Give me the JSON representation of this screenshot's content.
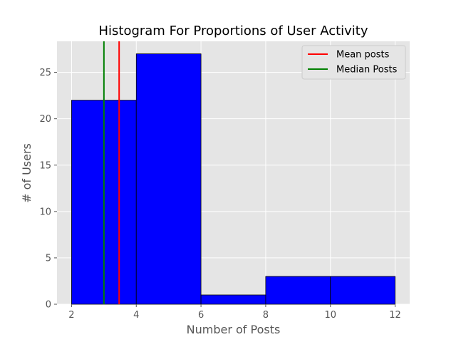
{
  "chart_data": {
    "type": "bar",
    "title": "Histogram For Proportions of User Activity",
    "xlabel": "Number of Posts",
    "ylabel": "# of Users",
    "bins": [
      {
        "start": 2,
        "end": 4,
        "count": 22
      },
      {
        "start": 4,
        "end": 6,
        "count": 27
      },
      {
        "start": 6,
        "end": 8,
        "count": 1
      },
      {
        "start": 8,
        "end": 10,
        "count": 3
      },
      {
        "start": 10,
        "end": 12,
        "count": 3
      }
    ],
    "xlim": [
      1.55,
      12.45
    ],
    "ylim": [
      0,
      28.35
    ],
    "xticks": [
      2,
      4,
      6,
      8,
      10,
      12
    ],
    "yticks": [
      0,
      5,
      10,
      15,
      20,
      25
    ],
    "vlines": [
      {
        "name": "Mean posts",
        "x": 3.47,
        "color": "#ff0000"
      },
      {
        "name": "Median Posts",
        "x": 3.0,
        "color": "#008000"
      }
    ],
    "bar_color": "#0000ff",
    "background": "#e5e5e5",
    "grid": true,
    "legend_position": "top-right"
  }
}
